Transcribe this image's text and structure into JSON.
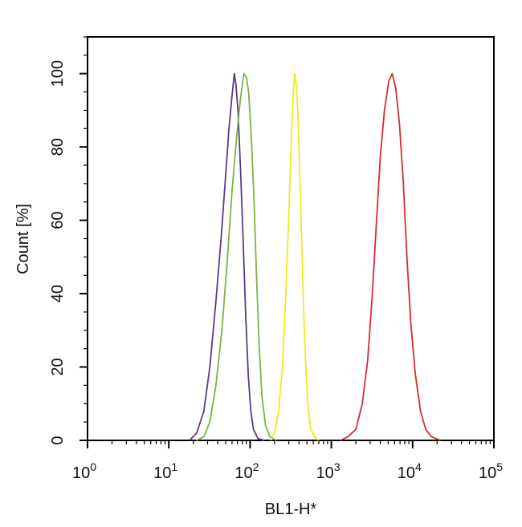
{
  "chart_data": {
    "type": "line",
    "title": "",
    "xlabel": "BL1-H*",
    "ylabel": "Count  [%]",
    "xscale": "log",
    "xlim": [
      1,
      100000
    ],
    "ylim": [
      0,
      110
    ],
    "grid": false,
    "legend": "none",
    "x_tick_labels": [
      {
        "base": "10",
        "exp": "0",
        "value": 1
      },
      {
        "base": "10",
        "exp": "1",
        "value": 10
      },
      {
        "base": "10",
        "exp": "2",
        "value": 100
      },
      {
        "base": "10",
        "exp": "3",
        "value": 1000
      },
      {
        "base": "10",
        "exp": "4",
        "value": 10000
      },
      {
        "base": "10",
        "exp": "5",
        "value": 100000
      }
    ],
    "y_tick_labels": [
      "0",
      "20",
      "40",
      "60",
      "80",
      "100"
    ],
    "y_ticks": [
      0,
      20,
      40,
      60,
      80,
      100
    ],
    "series": [
      {
        "color": "#5b3a8c",
        "points": [
          [
            18,
            0
          ],
          [
            22,
            2
          ],
          [
            27,
            8
          ],
          [
            32,
            20
          ],
          [
            38,
            38
          ],
          [
            44,
            55
          ],
          [
            50,
            72
          ],
          [
            55,
            85
          ],
          [
            60,
            94
          ],
          [
            64,
            100
          ],
          [
            67,
            97
          ],
          [
            71,
            90
          ],
          [
            76,
            75
          ],
          [
            82,
            55
          ],
          [
            88,
            35
          ],
          [
            95,
            18
          ],
          [
            102,
            8
          ],
          [
            110,
            3
          ],
          [
            125,
            0.5
          ],
          [
            150,
            0
          ]
        ]
      },
      {
        "color": "#7cb342",
        "points": [
          [
            22,
            0
          ],
          [
            27,
            1
          ],
          [
            32,
            5
          ],
          [
            38,
            15
          ],
          [
            45,
            30
          ],
          [
            52,
            48
          ],
          [
            60,
            68
          ],
          [
            68,
            82
          ],
          [
            76,
            93
          ],
          [
            84,
            100
          ],
          [
            90,
            99
          ],
          [
            96,
            95
          ],
          [
            104,
            82
          ],
          [
            112,
            65
          ],
          [
            120,
            45
          ],
          [
            130,
            25
          ],
          [
            140,
            12
          ],
          [
            155,
            4
          ],
          [
            175,
            1
          ],
          [
            210,
            0
          ]
        ]
      },
      {
        "color": "#f2ea1c",
        "points": [
          [
            180,
            0
          ],
          [
            200,
            2
          ],
          [
            225,
            8
          ],
          [
            250,
            20
          ],
          [
            275,
            40
          ],
          [
            300,
            62
          ],
          [
            322,
            82
          ],
          [
            340,
            95
          ],
          [
            355,
            100
          ],
          [
            370,
            97
          ],
          [
            390,
            88
          ],
          [
            410,
            72
          ],
          [
            435,
            52
          ],
          [
            460,
            33
          ],
          [
            490,
            18
          ],
          [
            520,
            8
          ],
          [
            560,
            3
          ],
          [
            620,
            1
          ],
          [
            700,
            0
          ]
        ]
      },
      {
        "color": "#d32f2f",
        "points": [
          [
            1300,
            0
          ],
          [
            1600,
            1
          ],
          [
            2000,
            3
          ],
          [
            2400,
            10
          ],
          [
            2800,
            22
          ],
          [
            3200,
            40
          ],
          [
            3600,
            60
          ],
          [
            4000,
            77
          ],
          [
            4500,
            90
          ],
          [
            5100,
            98
          ],
          [
            5600,
            100
          ],
          [
            6200,
            96
          ],
          [
            6900,
            86
          ],
          [
            7700,
            70
          ],
          [
            8500,
            50
          ],
          [
            9500,
            32
          ],
          [
            10800,
            18
          ],
          [
            12500,
            8
          ],
          [
            14500,
            3
          ],
          [
            17000,
            1
          ],
          [
            22000,
            0
          ]
        ]
      }
    ]
  }
}
